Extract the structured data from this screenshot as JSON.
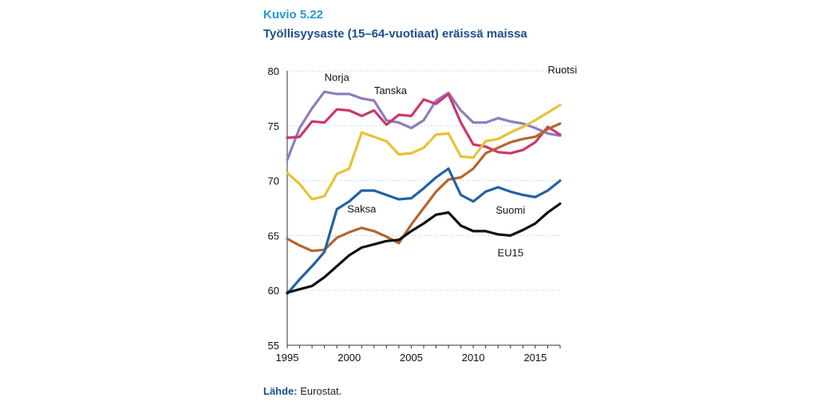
{
  "figure": {
    "number": "Kuvio 5.22",
    "title": "Työllisyysaste (15–64-vuotiaat) eräissä maissa"
  },
  "source": {
    "label": "Lähde:",
    "text": "Eurostat."
  },
  "chart_data": {
    "type": "line",
    "title": "Työllisyysaste (15–64-vuotiaat) eräissä maissa",
    "xlabel": "",
    "ylabel": "",
    "xlim": [
      1995,
      2017
    ],
    "ylim": [
      55,
      80
    ],
    "y_ticks": [
      55,
      60,
      65,
      70,
      75,
      80
    ],
    "x_ticks": [
      1995,
      2000,
      2005,
      2010,
      2015
    ],
    "grid": "horizontal dotted",
    "legend": "inline labels",
    "x": [
      1995,
      1996,
      1997,
      1998,
      1999,
      2000,
      2001,
      2002,
      2003,
      2004,
      2005,
      2006,
      2007,
      2008,
      2009,
      2010,
      2011,
      2012,
      2013,
      2014,
      2015,
      2016,
      2017
    ],
    "series": [
      {
        "name": "Norja",
        "color": "#8e7cc3",
        "values": [
          71.9,
          74.8,
          76.6,
          78.1,
          77.9,
          77.9,
          77.5,
          77.3,
          75.5,
          75.3,
          74.8,
          75.5,
          77.3,
          78.0,
          76.4,
          75.3,
          75.3,
          75.7,
          75.4,
          75.2,
          74.8,
          74.3,
          74.1
        ]
      },
      {
        "name": "Tanska",
        "color": "#c9386e",
        "values": [
          73.9,
          74.0,
          75.4,
          75.3,
          76.5,
          76.4,
          75.9,
          76.4,
          75.1,
          76.0,
          75.9,
          77.4,
          77.0,
          77.9,
          75.3,
          73.3,
          73.1,
          72.6,
          72.5,
          72.8,
          73.5,
          74.9,
          74.2
        ]
      },
      {
        "name": "Ruotsi",
        "color": "#e8c234",
        "values": [
          70.7,
          69.7,
          68.3,
          68.6,
          70.6,
          71.1,
          74.4,
          74.0,
          73.6,
          72.4,
          72.5,
          73.0,
          74.2,
          74.3,
          72.2,
          72.1,
          73.6,
          73.8,
          74.4,
          74.9,
          75.5,
          76.2,
          76.9
        ]
      },
      {
        "name": "Saksa",
        "color": "#b8642a",
        "values": [
          64.7,
          64.1,
          63.6,
          63.7,
          64.8,
          65.3,
          65.7,
          65.4,
          64.9,
          64.3,
          66.0,
          67.5,
          69.0,
          70.1,
          70.3,
          71.1,
          72.5,
          73.0,
          73.5,
          73.8,
          74.0,
          74.7,
          75.2
        ]
      },
      {
        "name": "Suomi",
        "color": "#2262a3",
        "values": [
          59.7,
          61.0,
          62.2,
          63.5,
          67.4,
          68.1,
          69.1,
          69.1,
          68.7,
          68.3,
          68.4,
          69.3,
          70.3,
          71.1,
          68.7,
          68.1,
          69.0,
          69.4,
          69.0,
          68.7,
          68.5,
          69.1,
          70.0
        ]
      },
      {
        "name": "EU15",
        "color": "#111111",
        "values": [
          59.8,
          60.1,
          60.4,
          61.2,
          62.2,
          63.2,
          63.9,
          64.2,
          64.5,
          64.6,
          65.4,
          66.1,
          66.9,
          67.1,
          65.9,
          65.4,
          65.4,
          65.1,
          65.0,
          65.5,
          66.1,
          67.1,
          67.9
        ]
      }
    ]
  }
}
